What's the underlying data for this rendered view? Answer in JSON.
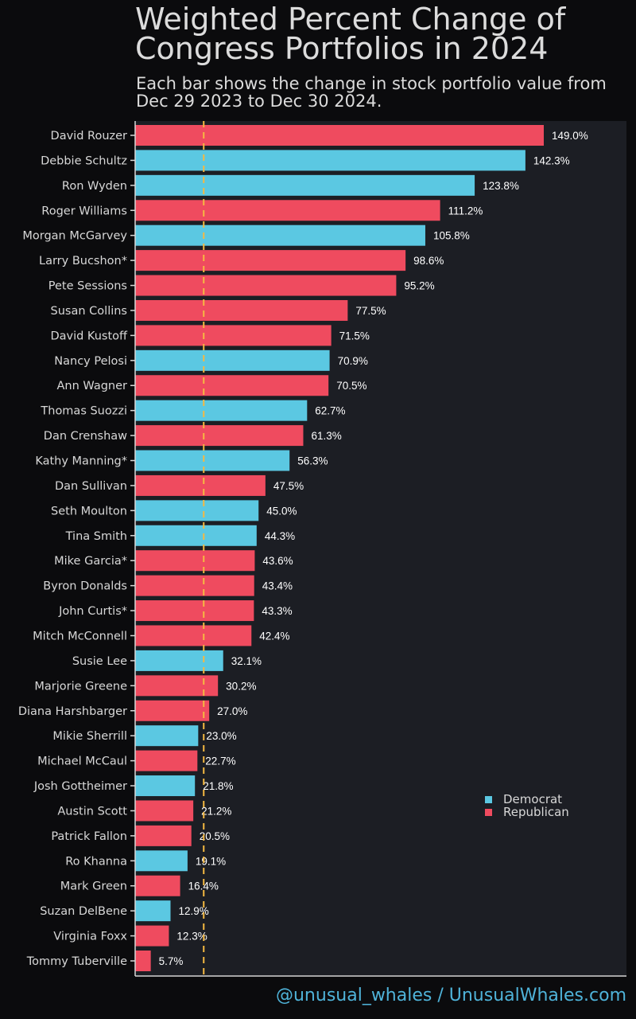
{
  "chart_data": {
    "type": "bar",
    "orientation": "horizontal",
    "title": "Weighted Percent Change of Congress Portfolios in 2024",
    "subtitle": "Each bar shows the change in stock portfolio value from Dec 29 2023 to Dec 30 2024.",
    "xlabel": "",
    "ylabel": "",
    "xlim": [
      0,
      180
    ],
    "grid": false,
    "legend_position": "bottom-right",
    "reference_line_value": 25,
    "reference_line_color": "#f5b942",
    "colors": {
      "Democrat": "#5bc8e2",
      "Republican": "#ef4b5f"
    },
    "legend": [
      "Democrat",
      "Republican"
    ],
    "categories": [
      "David Rouzer",
      "Debbie Schultz",
      "Ron Wyden",
      "Roger Williams",
      "Morgan McGarvey",
      "Larry Bucshon*",
      "Pete Sessions",
      "Susan Collins",
      "David Kustoff",
      "Nancy Pelosi",
      "Ann Wagner",
      "Thomas Suozzi",
      "Dan Crenshaw",
      "Kathy Manning*",
      "Dan Sullivan",
      "Seth Moulton",
      "Tina Smith",
      "Mike Garcia*",
      "Byron Donalds",
      "John Curtis*",
      "Mitch McConnell",
      "Susie Lee",
      "Marjorie Greene",
      "Diana Harshbarger",
      "Mikie Sherrill",
      "Michael McCaul",
      "Josh Gottheimer",
      "Austin Scott",
      "Patrick Fallon",
      "Ro Khanna",
      "Mark Green",
      "Suzan DelBene",
      "Virginia Foxx",
      "Tommy Tuberville"
    ],
    "values": [
      149.0,
      142.3,
      123.8,
      111.2,
      105.8,
      98.6,
      95.2,
      77.5,
      71.5,
      70.9,
      70.5,
      62.7,
      61.3,
      56.3,
      47.5,
      45.0,
      44.3,
      43.6,
      43.4,
      43.3,
      42.4,
      32.1,
      30.2,
      27.0,
      23.0,
      22.7,
      21.8,
      21.2,
      20.5,
      19.1,
      16.4,
      12.9,
      12.3,
      5.7
    ],
    "value_labels": [
      "149.0%",
      "142.3%",
      "123.8%",
      "111.2%",
      "105.8%",
      "98.6%",
      "95.2%",
      "77.5%",
      "71.5%",
      "70.9%",
      "70.5%",
      "62.7%",
      "61.3%",
      "56.3%",
      "47.5%",
      "45.0%",
      "44.3%",
      "43.6%",
      "43.4%",
      "43.3%",
      "42.4%",
      "32.1%",
      "30.2%",
      "27.0%",
      "23.0%",
      "22.7%",
      "21.8%",
      "21.2%",
      "20.5%",
      "19.1%",
      "16.4%",
      "12.9%",
      "12.3%",
      "5.7%"
    ],
    "party": [
      "Republican",
      "Democrat",
      "Democrat",
      "Republican",
      "Democrat",
      "Republican",
      "Republican",
      "Republican",
      "Republican",
      "Democrat",
      "Republican",
      "Democrat",
      "Republican",
      "Democrat",
      "Republican",
      "Democrat",
      "Democrat",
      "Republican",
      "Republican",
      "Republican",
      "Republican",
      "Democrat",
      "Republican",
      "Republican",
      "Democrat",
      "Republican",
      "Democrat",
      "Republican",
      "Republican",
      "Democrat",
      "Republican",
      "Democrat",
      "Republican",
      "Republican"
    ]
  },
  "footer": "@unusual_whales / UnusualWhales.com"
}
